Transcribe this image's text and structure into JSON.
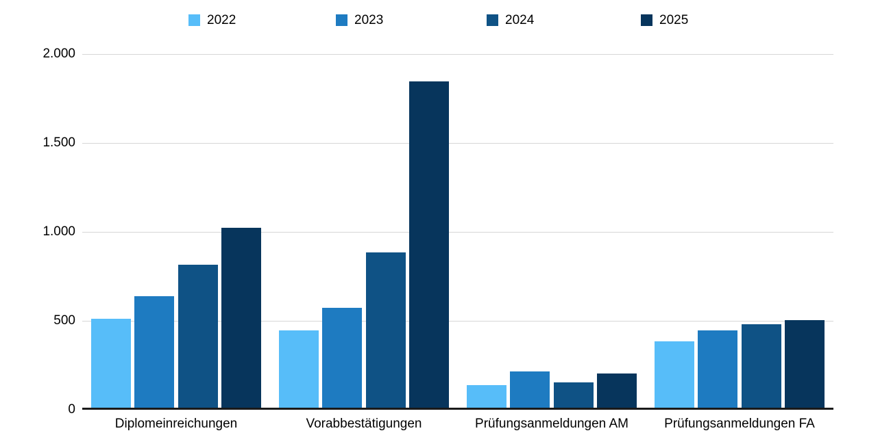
{
  "chart_data": {
    "type": "bar",
    "title": "",
    "xlabel": "",
    "ylabel": "",
    "categories": [
      "Diplomeinreichungen",
      "Vorabbestätigungen",
      "Prüfungsanmeldungen AM",
      "Prüfungsanmeldungen FA"
    ],
    "series": [
      {
        "name": "2022",
        "color": "#57BDF9",
        "values": [
          510,
          445,
          140,
          385
        ]
      },
      {
        "name": "2023",
        "color": "#1E7BC1",
        "values": [
          640,
          575,
          215,
          445
        ]
      },
      {
        "name": "2024",
        "color": "#0F5285",
        "values": [
          815,
          885,
          155,
          480
        ]
      },
      {
        "name": "2025",
        "color": "#07355C",
        "values": [
          1025,
          1845,
          205,
          505
        ]
      }
    ],
    "ylim": [
      0,
      2000
    ],
    "yticks": [
      0,
      500,
      1000,
      1500,
      2000
    ],
    "ytick_labels": [
      "0",
      "500",
      "1.000",
      "1.500",
      "2.000"
    ],
    "grid": true,
    "legend_position": "top",
    "colors": {
      "gridline": "#d6d6d6",
      "baseline": "#1a1a1a",
      "background": "#ffffff",
      "text": "#000000"
    }
  }
}
